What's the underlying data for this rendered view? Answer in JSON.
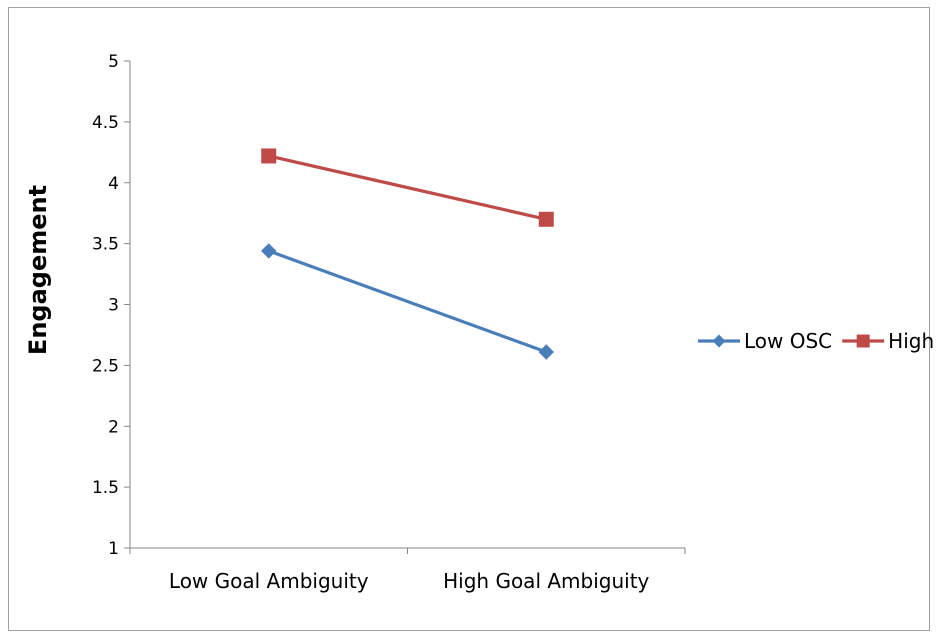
{
  "chart_data": {
    "type": "line",
    "title": "",
    "xlabel": "",
    "ylabel": "Engagement",
    "categories": [
      "Low Goal Ambiguity",
      "High Goal Ambiguity"
    ],
    "ylim": [
      1,
      5
    ],
    "yticks": [
      "1",
      "1.5",
      "2",
      "2.5",
      "3",
      "3.5",
      "4",
      "4.5",
      "5"
    ],
    "grid": false,
    "legend_position": "right",
    "series": [
      {
        "name": "Low OSC",
        "values": [
          3.44,
          2.61
        ],
        "color": "#4a7ebb",
        "marker": "diamond"
      },
      {
        "name": "High OSC",
        "values": [
          4.22,
          3.7
        ],
        "color": "#be4b48",
        "marker": "square"
      }
    ]
  }
}
